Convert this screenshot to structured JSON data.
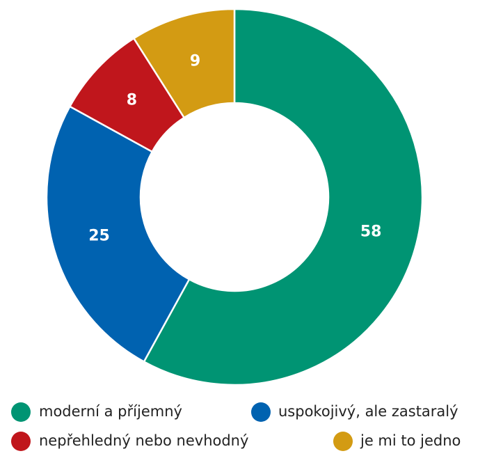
{
  "chart_data": {
    "type": "donut",
    "categories": [
      "moderní a příjemný",
      "uspokojivý, ale zastaralý",
      "nepřehledný nebo nevhodný",
      "je mi to jedno"
    ],
    "values": [
      58,
      25,
      8,
      9
    ],
    "colors": [
      "#009473",
      "#0062b0",
      "#c0161c",
      "#d39b13"
    ],
    "legend": "bottom"
  }
}
